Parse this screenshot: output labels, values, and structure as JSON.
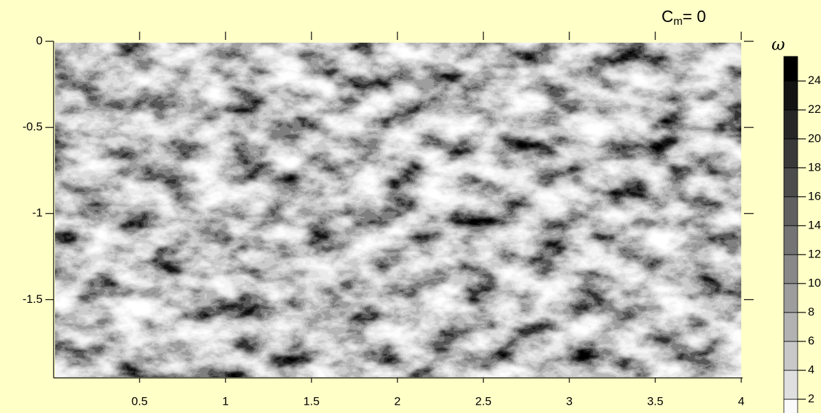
{
  "chart_data": {
    "type": "contour",
    "title": "C",
    "title_subscript": "m",
    "title_suffix": "= 0",
    "colorbar_label": "ω",
    "xlim": [
      0,
      4
    ],
    "xticks": [
      0.5,
      1,
      1.5,
      2,
      2.5,
      3,
      3.5,
      4
    ],
    "ylim": [
      -1.95,
      0
    ],
    "yticks": [
      0,
      -0.5,
      -1,
      -1.5
    ],
    "colorbar_lim": [
      1,
      25.7
    ],
    "colorbar_ticks": [
      2,
      4,
      6,
      8,
      10,
      12,
      14,
      16,
      18,
      20,
      22,
      24
    ]
  }
}
